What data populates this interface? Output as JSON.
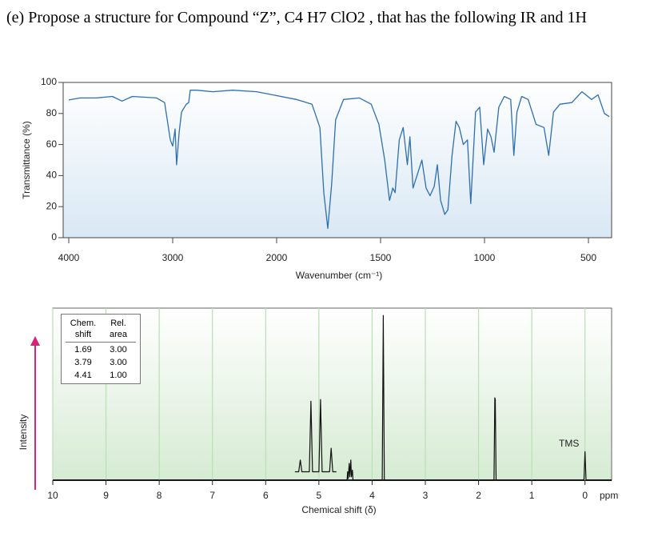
{
  "question": "(e) Propose a structure for Compound “Z”, C4 H7 ClO2 , that has the following IR and 1H",
  "chart_data": [
    {
      "type": "line",
      "xlabel": "Wavenumber (cm⁻¹)",
      "ylabel": "Transmittance (%)",
      "color": "#2f6fb0",
      "xlim": [
        4000,
        400
      ],
      "xticks": [
        4000,
        3000,
        2000,
        1500,
        1000,
        500
      ],
      "ylim": [
        0,
        100
      ],
      "yticks": [
        0,
        20,
        40,
        60,
        80,
        100
      ],
      "x": [
        4000,
        3891,
        3736,
        3581,
        3488,
        3388,
        3155,
        3078,
        3023,
        3000,
        2977,
        2962,
        2938,
        2915,
        2869,
        2846,
        2831,
        2769,
        2615,
        2423,
        2192,
        2038,
        1905,
        1830,
        1792,
        1773,
        1754,
        1735,
        1716,
        1678,
        1602,
        1545,
        1508,
        1480,
        1457,
        1441,
        1430,
        1410,
        1391,
        1371,
        1359,
        1344,
        1320,
        1301,
        1281,
        1262,
        1242,
        1227,
        1211,
        1191,
        1176,
        1156,
        1137,
        1121,
        1102,
        1082,
        1066,
        1043,
        1023,
        1004,
        985,
        969,
        954,
        931,
        905,
        874,
        859,
        844,
        821,
        790,
        752,
        714,
        691,
        668,
        637,
        580,
        531,
        485,
        454,
        423,
        400
      ],
      "values": [
        88.7,
        90,
        90,
        91,
        88,
        91,
        90,
        87,
        63,
        59,
        70,
        47,
        68,
        81,
        86,
        87,
        95,
        95,
        94,
        95,
        94,
        92,
        89,
        86,
        71,
        29,
        6,
        35,
        76,
        89,
        90,
        86,
        73,
        50,
        24,
        32,
        29,
        63,
        71,
        47,
        65,
        32,
        42,
        50,
        32,
        27,
        33,
        47,
        24,
        15,
        18,
        53,
        75,
        71,
        60,
        63,
        22,
        81,
        84,
        47,
        70,
        65,
        55,
        84,
        91,
        89,
        53,
        81,
        91,
        89,
        73,
        71,
        53,
        81,
        86,
        87,
        94,
        89,
        92,
        80,
        78
      ]
    },
    {
      "type": "line",
      "xlabel": "Chemical shift (δ)",
      "ylabel": "Intensity",
      "x_unit": "ppm",
      "color": "#111111",
      "xlim": [
        10,
        -0.5
      ],
      "xticks": [
        10,
        9,
        8,
        7,
        6,
        5,
        4,
        3,
        2,
        1,
        0
      ],
      "ylim": [
        0,
        100
      ],
      "grid": true,
      "annotations": [
        {
          "text": "TMS",
          "x": 0,
          "color": "#d6247a"
        }
      ],
      "table": {
        "header": [
          "Chem. shift",
          "Rel. area"
        ],
        "rows": [
          [
            "1.69",
            "3.00"
          ],
          [
            "3.79",
            "3.00"
          ],
          [
            "4.41",
            "1.00"
          ]
        ]
      },
      "series": [
        {
          "x": [
            10,
            4.47,
            4.46,
            4.45,
            4.43,
            4.42,
            4.4,
            4.39,
            4.37,
            4.36,
            3.81,
            3.79,
            3.77,
            1.71,
            1.695,
            1.685,
            1.67,
            0.02,
            0,
            -0.02,
            -0.5
          ],
          "values": [
            0,
            0,
            5,
            1,
            10,
            2,
            12,
            2,
            6,
            0,
            0,
            98,
            0,
            0,
            49,
            48,
            0,
            0,
            17,
            0,
            0
          ]
        },
        {
          "x": [
            5.45,
            5.38,
            5.35,
            5.32,
            5.18,
            5.15,
            5.12,
            5.0,
            4.97,
            4.94,
            4.8,
            4.77,
            4.74,
            4.67
          ],
          "values": [
            5,
            5,
            12,
            5,
            5,
            47,
            5,
            5,
            48,
            5,
            5,
            19,
            5,
            5
          ]
        }
      ]
    }
  ]
}
